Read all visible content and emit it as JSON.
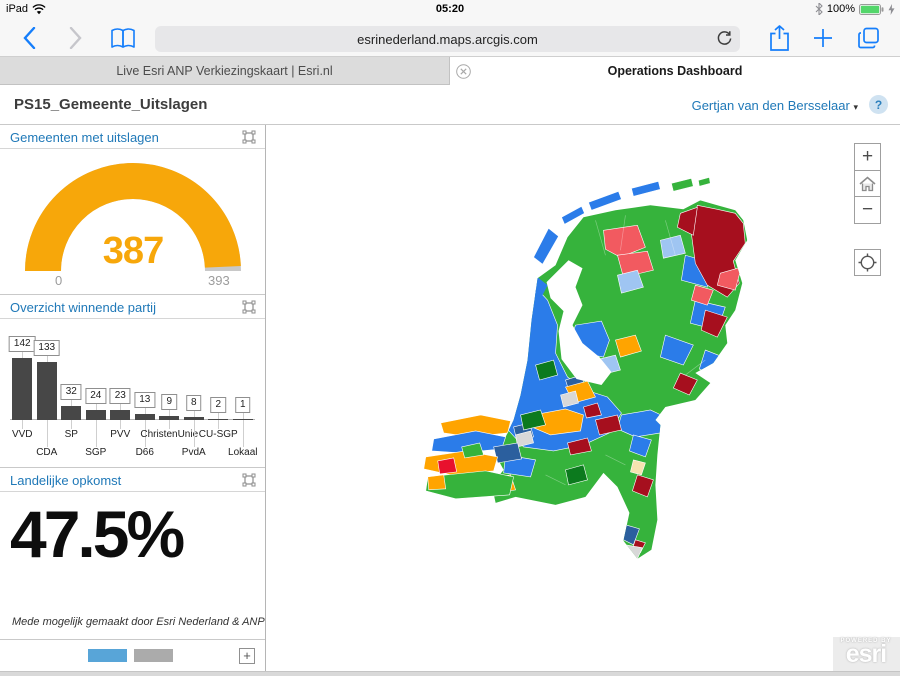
{
  "status_bar": {
    "device": "iPad",
    "time": "05:20",
    "battery_percent": "100%"
  },
  "browser": {
    "address": "esrinederland.maps.arcgis.com",
    "tabs": [
      {
        "title": "Live Esri ANP Verkiezingskaart | Esri.nl",
        "active": false
      },
      {
        "title": "Operations Dashboard",
        "active": true
      }
    ]
  },
  "dashboard": {
    "title": "PS15_Gemeente_Uitslagen",
    "user_menu": "Gertjan van den Bersselaar",
    "help_label": "?"
  },
  "chart_data": [
    {
      "type": "gauge",
      "title": "Gemeenten met uitslagen",
      "value": 387,
      "min": 0,
      "max": 393,
      "value_color": "#F7A70A",
      "track_color": "#c8c8c8"
    },
    {
      "type": "bar",
      "title": "Overzicht winnende partij",
      "categories": [
        "VVD",
        "CDA",
        "SP",
        "SGP",
        "PVV",
        "D66",
        "ChristenUnie",
        "PvdA",
        "CU-SGP",
        "Lokaal"
      ],
      "values": [
        142,
        133,
        32,
        24,
        23,
        13,
        9,
        8,
        2,
        1
      ],
      "bar_color": "#474747",
      "ylim": [
        0,
        142
      ]
    },
    {
      "type": "indicator",
      "title": "Landelijke opkomst",
      "value": 47.5,
      "display": "47.5%",
      "caption": "Mede mogelijk gemaakt door Esri Nederland & ANP"
    }
  ],
  "map": {
    "controls": {
      "zoom_in": "+",
      "zoom_out": "−"
    },
    "attribution": {
      "powered_by": "POWERED BY",
      "brand": "esri"
    },
    "region_colors": [
      "#36b33c",
      "#2b7ce9",
      "#a60f1e",
      "#f25a60",
      "#ffa400",
      "#9fc5f2",
      "#2b5f9e",
      "#0c7a1e",
      "#d8d8d8"
    ]
  }
}
